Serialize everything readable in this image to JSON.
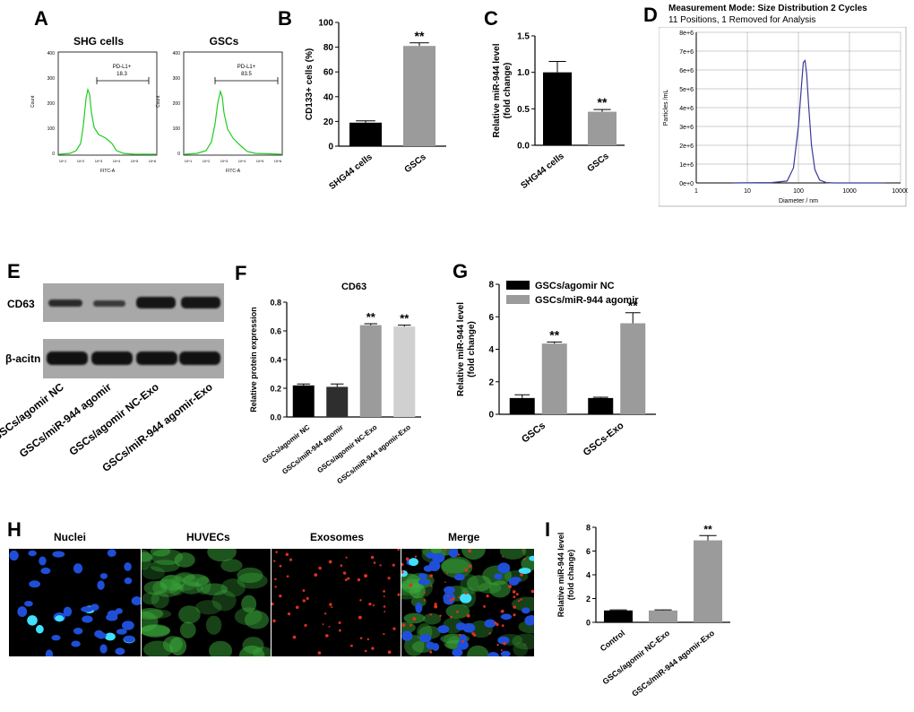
{
  "panels": {
    "A": {
      "letter": "A",
      "plots": [
        {
          "title": "SHG cells",
          "gate_label": "PD-L1+",
          "gate_value": "18.3",
          "xlabel": "FITC-A",
          "ylabel": "Count",
          "y_ticks": [
            "0",
            "100",
            "200",
            "300",
            "400"
          ],
          "x_ticks": [
            "10^1",
            "10^2",
            "10^3",
            "10^4",
            "10^5",
            "10^6"
          ]
        },
        {
          "title": "GSCs",
          "gate_label": "PD-L1+",
          "gate_value": "83.5",
          "xlabel": "FITC-A",
          "ylabel": "Count",
          "y_ticks": [
            "0",
            "100",
            "200",
            "300",
            "400"
          ],
          "x_ticks": [
            "10^1",
            "10^2",
            "10^3",
            "10^4",
            "10^5",
            "10^6"
          ]
        }
      ]
    },
    "B": {
      "letter": "B"
    },
    "C": {
      "letter": "C"
    },
    "D": {
      "letter": "D",
      "title": "Measurement Mode: Size Distribution 2 Cycles",
      "subtitle": "11 Positions, 1 Removed for Analysis"
    },
    "E": {
      "letter": "E",
      "band_labels": [
        "CD63",
        "β-acitn"
      ],
      "lanes": [
        "GSCs/agomir NC",
        "GSCs/miR-944 agomir",
        "GSCs/agomir NC-Exo",
        "GSCs/miR-944 agomir-Exo"
      ]
    },
    "F": {
      "letter": "F"
    },
    "G": {
      "letter": "G"
    },
    "H": {
      "letter": "H",
      "images": [
        "Nuclei",
        "HUVECs",
        "Exosomes",
        "Merge"
      ]
    },
    "I": {
      "letter": "I"
    }
  },
  "colors": {
    "black_bar": "#000000",
    "gray_bar": "#9b9b9b",
    "light_bar": "#d0d0d0",
    "flow_line": "#22cc22",
    "nta_line": "#3a3a9a"
  },
  "chart_data": [
    {
      "id": "B",
      "type": "bar",
      "categories": [
        "SHG44 cells",
        "GSCs"
      ],
      "values": [
        19,
        81
      ],
      "errors": [
        1.5,
        2.5
      ],
      "colors": [
        "#000000",
        "#9b9b9b"
      ],
      "significance": [
        "",
        "**"
      ],
      "xlabel": "",
      "ylabel": "CD133+ cells (%)",
      "ylim": [
        0,
        100
      ],
      "yticks": [
        0,
        20,
        40,
        60,
        80,
        100
      ]
    },
    {
      "id": "C",
      "type": "bar",
      "categories": [
        "SHG44 cells",
        "GSCs"
      ],
      "values": [
        1.0,
        0.46
      ],
      "errors": [
        0.15,
        0.03
      ],
      "colors": [
        "#000000",
        "#9b9b9b"
      ],
      "significance": [
        "",
        "**"
      ],
      "xlabel": "",
      "ylabel": "Relative miR-944 level (fold change)",
      "ylim": [
        0,
        1.5
      ],
      "yticks": [
        0.0,
        0.5,
        1.0,
        1.5
      ]
    },
    {
      "id": "D",
      "type": "line",
      "xlabel": "Diameter / nm",
      "ylabel": "Particles /mL",
      "x_scale": "log",
      "xlim": [
        1,
        10000
      ],
      "ylim": [
        0,
        8000000
      ],
      "yticks": [
        "0e+0",
        "1e+6",
        "2e+6",
        "3e+6",
        "4e+6",
        "5e+6",
        "6e+6",
        "7e+6",
        "8e+6"
      ],
      "xticks": [
        "1",
        "10",
        "100",
        "1000",
        "10000"
      ],
      "x": [
        5,
        30,
        60,
        80,
        100,
        115,
        125,
        135,
        145,
        160,
        180,
        210,
        260,
        350,
        500,
        1000,
        5000
      ],
      "y": [
        0,
        20000,
        100000,
        800000,
        3000000,
        5200000,
        6400000,
        6500000,
        5800000,
        4000000,
        2000000,
        700000,
        150000,
        20000,
        0,
        0,
        0
      ]
    },
    {
      "id": "F",
      "type": "bar",
      "title": "CD63",
      "categories": [
        "GSCs/agomir NC",
        "GSCs/miR-944 agomir",
        "GSCs/agomir NC-Exo",
        "GSCs/miR-944 agomir-Exo"
      ],
      "values": [
        0.22,
        0.21,
        0.64,
        0.63
      ],
      "errors": [
        0.01,
        0.02,
        0.01,
        0.01
      ],
      "colors": [
        "#000000",
        "#2e2e2e",
        "#9b9b9b",
        "#d0d0d0"
      ],
      "significance": [
        "",
        "",
        "**",
        "**"
      ],
      "xlabel": "",
      "ylabel": "Relative protein expression",
      "ylim": [
        0,
        0.8
      ],
      "yticks": [
        0.0,
        0.2,
        0.4,
        0.6,
        0.8
      ]
    },
    {
      "id": "G",
      "type": "bar",
      "categories": [
        "GSCs",
        "GSCs-Exo"
      ],
      "series": [
        {
          "name": "GSCs/agomir NC",
          "values": [
            1.0,
            1.0
          ],
          "errors": [
            0.2,
            0.05
          ],
          "color": "#000000",
          "significance": [
            "",
            ""
          ]
        },
        {
          "name": "GSCs/miR-944 agomir",
          "values": [
            4.35,
            5.6
          ],
          "errors": [
            0.1,
            0.65
          ],
          "color": "#9b9b9b",
          "significance": [
            "**",
            "**"
          ]
        }
      ],
      "xlabel": "",
      "ylabel": "Relative miR-944 level (fold change)",
      "ylim": [
        0,
        8
      ],
      "yticks": [
        0,
        2,
        4,
        6,
        8
      ],
      "legend": "top-left"
    },
    {
      "id": "I",
      "type": "bar",
      "categories": [
        "Control",
        "GSCs/agomir NC-Exo",
        "GSCs/miR-944 agomir-Exo"
      ],
      "values": [
        1.0,
        1.0,
        6.9
      ],
      "errors": [
        0.05,
        0.05,
        0.4
      ],
      "colors": [
        "#000000",
        "#9b9b9b",
        "#9b9b9b"
      ],
      "significance": [
        "",
        "",
        "**"
      ],
      "xlabel": "",
      "ylabel": "Relative miR-944 level (fold change)",
      "ylim": [
        0,
        8
      ],
      "yticks": [
        0,
        2,
        4,
        6,
        8
      ]
    }
  ]
}
